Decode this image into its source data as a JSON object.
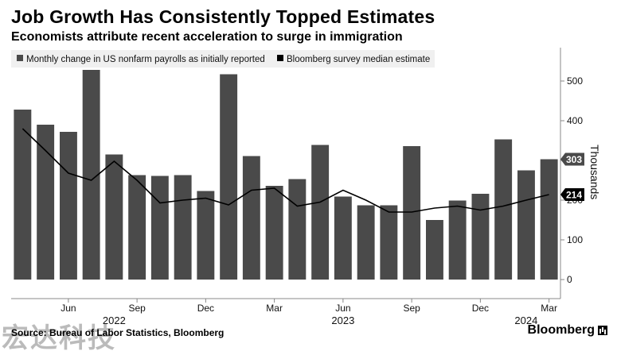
{
  "header": {
    "title": "Job Growth Has Consistently Topped Estimates",
    "subtitle": "Economists attribute recent acceleration to surge in immigration"
  },
  "footer": {
    "source": "Source: Bureau of Labor Statistics, Bloomberg",
    "brand": "Bloomberg",
    "watermark": "宏达科技"
  },
  "colors": {
    "bar": "#4a4a4a",
    "line": "#000000",
    "legend_bg": "#f0f0f0",
    "gridline": "#cfcfcf"
  },
  "chart_data": {
    "type": "bar",
    "categories": [
      "2022-04",
      "2022-05",
      "2022-06",
      "2022-07",
      "2022-08",
      "2022-09",
      "2022-10",
      "2022-11",
      "2022-12",
      "2023-01",
      "2023-02",
      "2023-03",
      "2023-04",
      "2023-05",
      "2023-06",
      "2023-07",
      "2023-08",
      "2023-09",
      "2023-10",
      "2023-11",
      "2023-12",
      "2024-01",
      "2024-02",
      "2024-03"
    ],
    "series": [
      {
        "name": "Monthly change in US nonfarm payrolls as initially reported",
        "kind": "bar",
        "values": [
          428,
          390,
          372,
          528,
          315,
          263,
          261,
          263,
          223,
          517,
          311,
          236,
          253,
          339,
          209,
          187,
          187,
          336,
          150,
          199,
          216,
          353,
          275,
          303
        ]
      },
      {
        "name": "Bloomberg survey median estimate",
        "kind": "line",
        "values": [
          380,
          325,
          268,
          250,
          298,
          250,
          193,
          200,
          205,
          188,
          225,
          230,
          185,
          195,
          225,
          200,
          170,
          170,
          180,
          185,
          175,
          185,
          200,
          214
        ]
      }
    ],
    "x_ticks": [
      {
        "label": "Jun",
        "index": 2
      },
      {
        "label": "Sep",
        "index": 5
      },
      {
        "label": "Dec",
        "index": 8
      },
      {
        "label": "Mar",
        "index": 11
      },
      {
        "label": "Jun",
        "index": 14
      },
      {
        "label": "Sep",
        "index": 17
      },
      {
        "label": "Dec",
        "index": 20
      },
      {
        "label": "Mar",
        "index": 23
      }
    ],
    "year_labels": [
      {
        "label": "2022",
        "index": 4
      },
      {
        "label": "2023",
        "index": 14
      },
      {
        "label": "2024",
        "index": 22
      }
    ],
    "y_ticks": [
      0,
      100,
      200,
      300,
      400,
      500
    ],
    "ylim": [
      -50,
      580
    ],
    "ylabel": "Thousands",
    "callouts": [
      {
        "label": "303",
        "value": 303,
        "style": "bar"
      },
      {
        "label": "214",
        "value": 214,
        "style": "line"
      }
    ],
    "legend": "top-left",
    "grid": false
  }
}
